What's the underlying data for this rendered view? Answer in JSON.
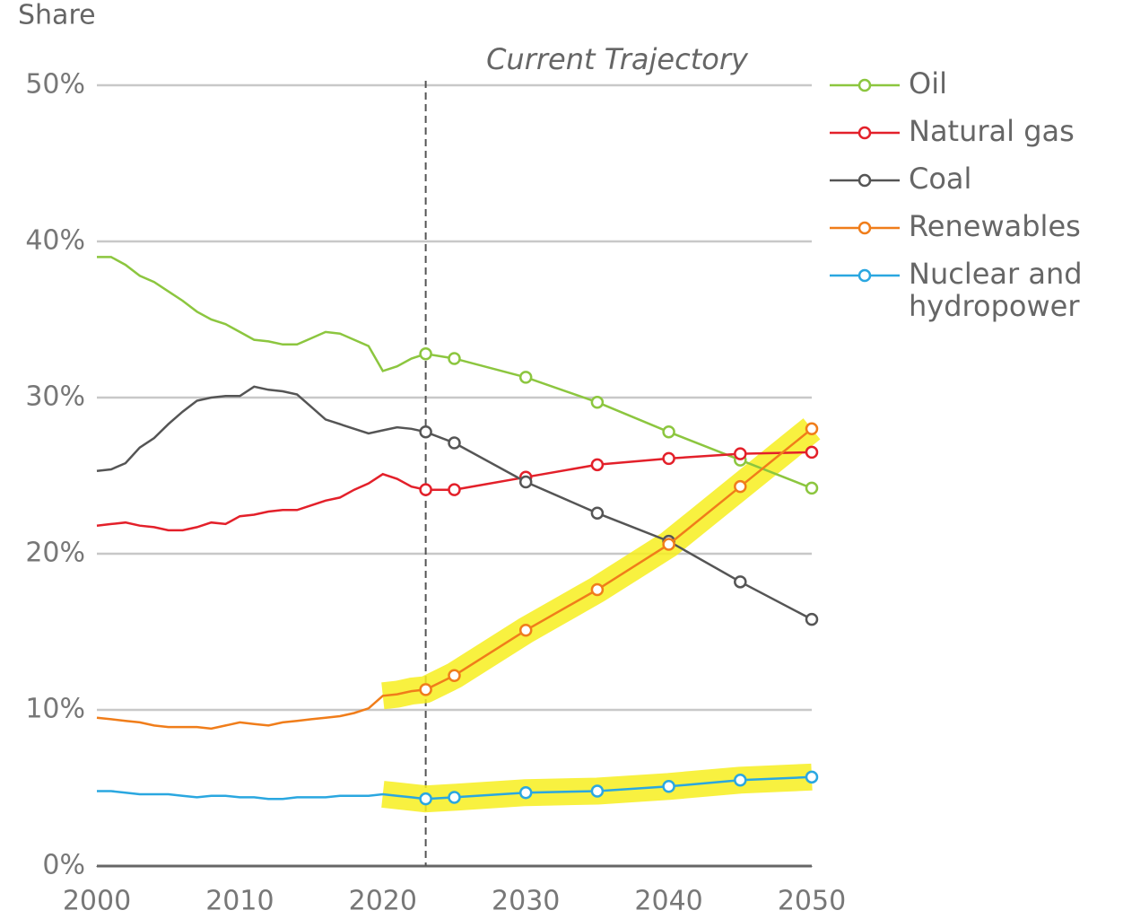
{
  "chart_data": {
    "type": "line",
    "y_axis_label": "Share",
    "annotation": "Current Trajectory",
    "projection_start": 2023,
    "x": [
      2000,
      2001,
      2002,
      2003,
      2004,
      2005,
      2006,
      2007,
      2008,
      2009,
      2010,
      2011,
      2012,
      2013,
      2014,
      2015,
      2016,
      2017,
      2018,
      2019,
      2020,
      2021,
      2022,
      2023,
      2025,
      2030,
      2035,
      2040,
      2045,
      2050
    ],
    "series": [
      {
        "name": "Oil",
        "color": "#8cc63f",
        "values": [
          39.0,
          39.0,
          38.5,
          37.8,
          37.4,
          36.8,
          36.2,
          35.5,
          35.0,
          34.7,
          34.2,
          33.7,
          33.6,
          33.4,
          33.4,
          33.8,
          34.2,
          34.1,
          33.7,
          33.3,
          31.7,
          32.0,
          32.5,
          32.8,
          32.5,
          31.3,
          29.7,
          27.8,
          26.0,
          24.2
        ]
      },
      {
        "name": "Natural gas",
        "color": "#e3202a",
        "values": [
          21.8,
          21.9,
          22.0,
          21.8,
          21.7,
          21.5,
          21.5,
          21.7,
          22.0,
          21.9,
          22.4,
          22.5,
          22.7,
          22.8,
          22.8,
          23.1,
          23.4,
          23.6,
          24.1,
          24.5,
          25.1,
          24.8,
          24.3,
          24.1,
          24.1,
          24.9,
          25.7,
          26.1,
          26.4,
          26.5
        ]
      },
      {
        "name": "Coal",
        "color": "#555555",
        "values": [
          25.3,
          25.4,
          25.8,
          26.8,
          27.4,
          28.3,
          29.1,
          29.8,
          30.0,
          30.1,
          30.1,
          30.7,
          30.5,
          30.4,
          30.2,
          29.4,
          28.6,
          28.3,
          28.0,
          27.7,
          27.9,
          28.1,
          28.0,
          27.8,
          27.1,
          24.6,
          22.6,
          20.8,
          18.2,
          15.8
        ]
      },
      {
        "name": "Renewables",
        "color": "#f07d1a",
        "highlighted": true,
        "values": [
          9.5,
          9.4,
          9.3,
          9.2,
          9.0,
          8.9,
          8.9,
          8.9,
          8.8,
          9.0,
          9.2,
          9.1,
          9.0,
          9.2,
          9.3,
          9.4,
          9.5,
          9.6,
          9.8,
          10.1,
          10.9,
          11.0,
          11.2,
          11.3,
          12.2,
          15.1,
          17.7,
          20.6,
          24.3,
          28.0
        ]
      },
      {
        "name": "Nuclear and hydropower",
        "color": "#2aa7e0",
        "highlighted": true,
        "values": [
          4.8,
          4.8,
          4.7,
          4.6,
          4.6,
          4.6,
          4.5,
          4.4,
          4.5,
          4.5,
          4.4,
          4.4,
          4.3,
          4.3,
          4.4,
          4.4,
          4.4,
          4.5,
          4.5,
          4.5,
          4.6,
          4.5,
          4.4,
          4.3,
          4.4,
          4.7,
          4.8,
          5.1,
          5.5,
          5.7
        ]
      }
    ],
    "xlim": [
      2000,
      2050
    ],
    "xticks": [
      2000,
      2010,
      2020,
      2030,
      2040,
      2050
    ],
    "ylim": [
      0,
      50
    ],
    "yticks": [
      {
        "value": 0,
        "label": "0%"
      },
      {
        "value": 10,
        "label": "10%"
      },
      {
        "value": 20,
        "label": "20%"
      },
      {
        "value": 30,
        "label": "30%"
      },
      {
        "value": 40,
        "label": "40%"
      },
      {
        "value": 50,
        "label": "50%"
      }
    ],
    "grid": true
  }
}
